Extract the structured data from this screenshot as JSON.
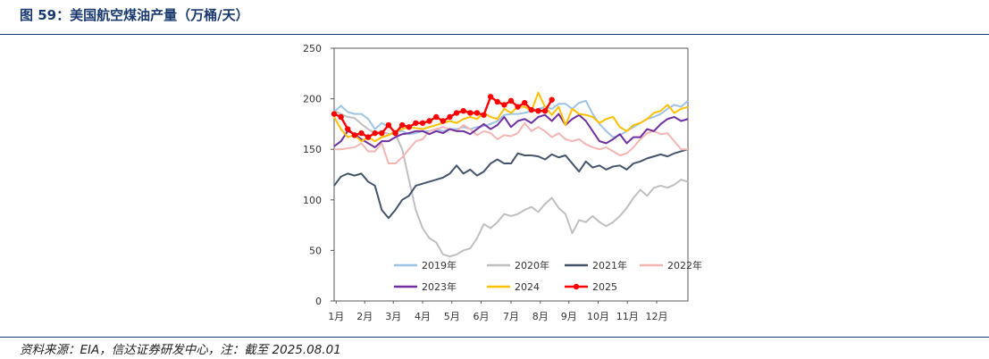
{
  "figure": {
    "title": "图 59：美国航空煤油产量（万桶/天）",
    "source": "资料来源：EIA，信达证券研发中心，注：截至 2025.08.01"
  },
  "chart_data": {
    "type": "line",
    "title": "美国航空煤油产量（万桶/天）",
    "ylabel": "万桶/天",
    "xlabel": "",
    "ylim": [
      0,
      250
    ],
    "yticks": [
      0,
      50,
      100,
      150,
      200,
      250
    ],
    "xlim": [
      0,
      52
    ],
    "month_labels": [
      "1月",
      "2月",
      "3月",
      "4月",
      "5月",
      "6月",
      "7月",
      "8月",
      "9月",
      "10月",
      "11月",
      "12月"
    ],
    "grid": false,
    "legend_position": "bottom-inside",
    "series": [
      {
        "name": "2019年",
        "color": "#9dc3e6",
        "marker": false,
        "values": [
          187,
          193,
          187,
          185,
          185,
          180,
          170,
          176,
          172,
          168,
          168,
          165,
          166,
          168,
          168,
          170,
          168,
          170,
          170,
          172,
          170,
          172,
          173,
          175,
          178,
          184,
          185,
          185,
          186,
          188,
          190,
          192,
          190,
          195,
          195,
          190,
          196,
          198,
          185,
          175,
          168,
          162,
          164,
          168,
          172,
          176,
          180,
          182,
          185,
          190,
          194,
          192,
          198
        ]
      },
      {
        "name": "2020年",
        "color": "#bfbfbf",
        "marker": false,
        "values": [
          188,
          185,
          182,
          181,
          175,
          170,
          166,
          168,
          165,
          165,
          150,
          120,
          90,
          72,
          62,
          58,
          46,
          44,
          46,
          50,
          52,
          62,
          76,
          72,
          78,
          86,
          84,
          86,
          90,
          93,
          88,
          96,
          102,
          92,
          86,
          67,
          80,
          78,
          84,
          78,
          74,
          78,
          84,
          92,
          102,
          110,
          104,
          112,
          114,
          112,
          115,
          120,
          118
        ]
      },
      {
        "name": "2021年",
        "color": "#44546a",
        "marker": false,
        "values": [
          114,
          123,
          126,
          124,
          126,
          118,
          114,
          90,
          82,
          90,
          100,
          104,
          114,
          116,
          118,
          120,
          122,
          126,
          134,
          126,
          130,
          124,
          128,
          136,
          140,
          136,
          136,
          146,
          144,
          144,
          143,
          140,
          145,
          142,
          144,
          136,
          128,
          138,
          132,
          134,
          130,
          133,
          134,
          130,
          136,
          138,
          141,
          143,
          145,
          143,
          146,
          148,
          150
        ]
      },
      {
        "name": "2022年",
        "color": "#f4b6b3",
        "marker": false,
        "values": [
          150,
          150,
          151,
          152,
          156,
          148,
          148,
          156,
          136,
          136,
          142,
          150,
          158,
          160,
          168,
          170,
          172,
          170,
          168,
          174,
          170,
          164,
          168,
          166,
          160,
          164,
          163,
          166,
          176,
          168,
          172,
          168,
          162,
          166,
          160,
          158,
          160,
          155,
          152,
          150,
          152,
          148,
          144,
          146,
          152,
          160,
          166,
          168,
          165,
          166,
          158,
          150,
          150
        ]
      },
      {
        "name": "2023年",
        "color": "#7030a0",
        "marker": false,
        "values": [
          153,
          158,
          168,
          165,
          160,
          156,
          152,
          158,
          158,
          162,
          165,
          166,
          168,
          168,
          165,
          168,
          166,
          170,
          168,
          168,
          165,
          170,
          175,
          170,
          174,
          182,
          172,
          178,
          180,
          176,
          182,
          184,
          178,
          185,
          174,
          180,
          184,
          178,
          168,
          158,
          156,
          160,
          165,
          156,
          162,
          162,
          170,
          168,
          175,
          180,
          182,
          178,
          180
        ]
      },
      {
        "name": "2024",
        "color": "#ffc000",
        "marker": false,
        "values": [
          182,
          170,
          162,
          164,
          158,
          162,
          158,
          162,
          164,
          168,
          170,
          172,
          171,
          170,
          172,
          174,
          176,
          178,
          176,
          180,
          182,
          180,
          186,
          182,
          180,
          190,
          186,
          192,
          192,
          188,
          206,
          192,
          184,
          192,
          174,
          190,
          185,
          184,
          182,
          176,
          180,
          182,
          172,
          168,
          174,
          176,
          180,
          186,
          188,
          194,
          186,
          190,
          192
        ]
      },
      {
        "name": "2025",
        "color": "#ff0000",
        "marker": true,
        "values": [
          185,
          182,
          170,
          164,
          166,
          162,
          166,
          166,
          174,
          166,
          174,
          172,
          176,
          176,
          178,
          182,
          178,
          182,
          186,
          188,
          186,
          186,
          184,
          202,
          197,
          194,
          198,
          192,
          196,
          189,
          188,
          188,
          199
        ]
      }
    ]
  }
}
